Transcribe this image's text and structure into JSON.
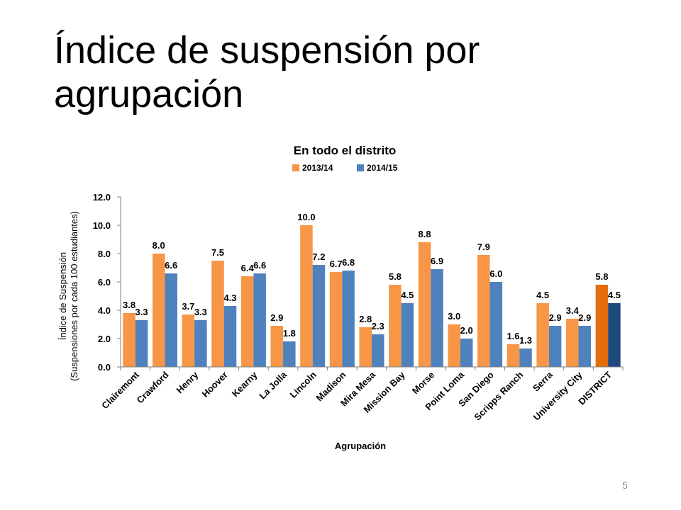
{
  "slide": {
    "title_line1": "Índice de suspensión por",
    "title_line2": "agrupación",
    "page_number": "5"
  },
  "colors": {
    "series_2013": "#f79646",
    "series_2014": "#4f81bd",
    "district_2013": "#e46c0a",
    "district_2014": "#1f497d"
  },
  "chart_data": {
    "type": "bar",
    "title": "En todo el distrito",
    "xlabel": "Agrupación",
    "ylabel_line1": "Índice de Suspensión",
    "ylabel_line2": "(Suspensiones por cada 100 estudiantes)",
    "ylim": [
      0,
      12
    ],
    "yticks": [
      "0.0",
      "2.0",
      "4.0",
      "6.0",
      "8.0",
      "10.0",
      "12.0"
    ],
    "legend_position": "top",
    "grid": false,
    "categories": [
      "Clairemont",
      "Crawford",
      "Henry",
      "Hoover",
      "Kearny",
      "La Jolla",
      "Lincoln",
      "Madison",
      "Mira Mesa",
      "Mission Bay",
      "Morse",
      "Point Loma",
      "San Diego",
      "Scripps Ranch",
      "Serra",
      "University City",
      "DISTRICT"
    ],
    "series": [
      {
        "name": "2013/14",
        "values": [
          3.8,
          8.0,
          3.7,
          7.5,
          6.4,
          2.9,
          10.0,
          6.7,
          2.8,
          5.8,
          8.8,
          3.0,
          7.9,
          1.6,
          4.5,
          3.4,
          5.8
        ],
        "labels": [
          "3.8",
          "8.0",
          "3.7",
          "7.5",
          "6.4",
          "2.9",
          "10.0",
          "6.7",
          "2.8",
          "5.8",
          "8.8",
          "3.0",
          "7.9",
          "1.6",
          "4.5",
          "3.4",
          "5.8"
        ]
      },
      {
        "name": "2014/15",
        "values": [
          3.3,
          6.6,
          3.3,
          4.3,
          6.6,
          1.8,
          7.2,
          6.8,
          2.3,
          4.5,
          6.9,
          2.0,
          6.0,
          1.3,
          2.9,
          2.9,
          4.5
        ],
        "labels": [
          "3.3",
          "6.6",
          "3.3",
          "4.3",
          "6.6",
          "1.8",
          "7.2",
          "6.8",
          "2.3",
          "4.5",
          "6.9",
          "2.0",
          "6.0",
          "1.3",
          "2.9",
          "2.9",
          "4.5"
        ]
      }
    ]
  }
}
